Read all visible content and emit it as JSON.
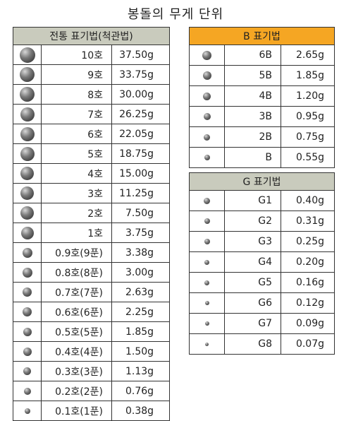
{
  "title": "봉돌의 무게 단위",
  "left_table": {
    "header": "전통 표기법(척관법)",
    "rows": [
      {
        "label": "10호",
        "weight": "37.50g"
      },
      {
        "label": "9호",
        "weight": "33.75g"
      },
      {
        "label": "8호",
        "weight": "30.00g"
      },
      {
        "label": "7호",
        "weight": "26.25g"
      },
      {
        "label": "6호",
        "weight": "22.05g"
      },
      {
        "label": "5호",
        "weight": "18.75g"
      },
      {
        "label": "4호",
        "weight": "15.00g"
      },
      {
        "label": "3호",
        "weight": "11.25g"
      },
      {
        "label": "2호",
        "weight": "7.50g"
      },
      {
        "label": "1호",
        "weight": "3.75g"
      },
      {
        "label": "0.9호(9푼)",
        "weight": "3.38g"
      },
      {
        "label": "0.8호(8푼)",
        "weight": "3.00g"
      },
      {
        "label": "0.7호(7푼)",
        "weight": "2.63g"
      },
      {
        "label": "0.6호(6푼)",
        "weight": "2.25g"
      },
      {
        "label": "0.5호(5푼)",
        "weight": "1.85g"
      },
      {
        "label": "0.4호(4푼)",
        "weight": "1.50g"
      },
      {
        "label": "0.3호(3푼)",
        "weight": "1.13g"
      },
      {
        "label": "0.2호(2푼)",
        "weight": "0.76g"
      },
      {
        "label": "0.1호(1푼)",
        "weight": "0.38g"
      }
    ]
  },
  "b_table": {
    "header": "B 표기법",
    "rows": [
      {
        "label": "6B",
        "weight": "2.65g"
      },
      {
        "label": "5B",
        "weight": "1.85g"
      },
      {
        "label": "4B",
        "weight": "1.20g"
      },
      {
        "label": "3B",
        "weight": "0.95g"
      },
      {
        "label": "2B",
        "weight": "0.75g"
      },
      {
        "label": "B",
        "weight": "0.55g"
      }
    ]
  },
  "g_table": {
    "header": "G 표기법",
    "rows": [
      {
        "label": "G1",
        "weight": "0.40g"
      },
      {
        "label": "G2",
        "weight": "0.31g"
      },
      {
        "label": "G3",
        "weight": "0.25g"
      },
      {
        "label": "G4",
        "weight": "0.20g"
      },
      {
        "label": "G5",
        "weight": "0.16g"
      },
      {
        "label": "G6",
        "weight": "0.12g"
      },
      {
        "label": "G7",
        "weight": "0.09g"
      },
      {
        "label": "G8",
        "weight": "0.07g"
      }
    ]
  },
  "colors": {
    "b_header": "#f5a623",
    "gray_header": "#c9cbbd"
  }
}
